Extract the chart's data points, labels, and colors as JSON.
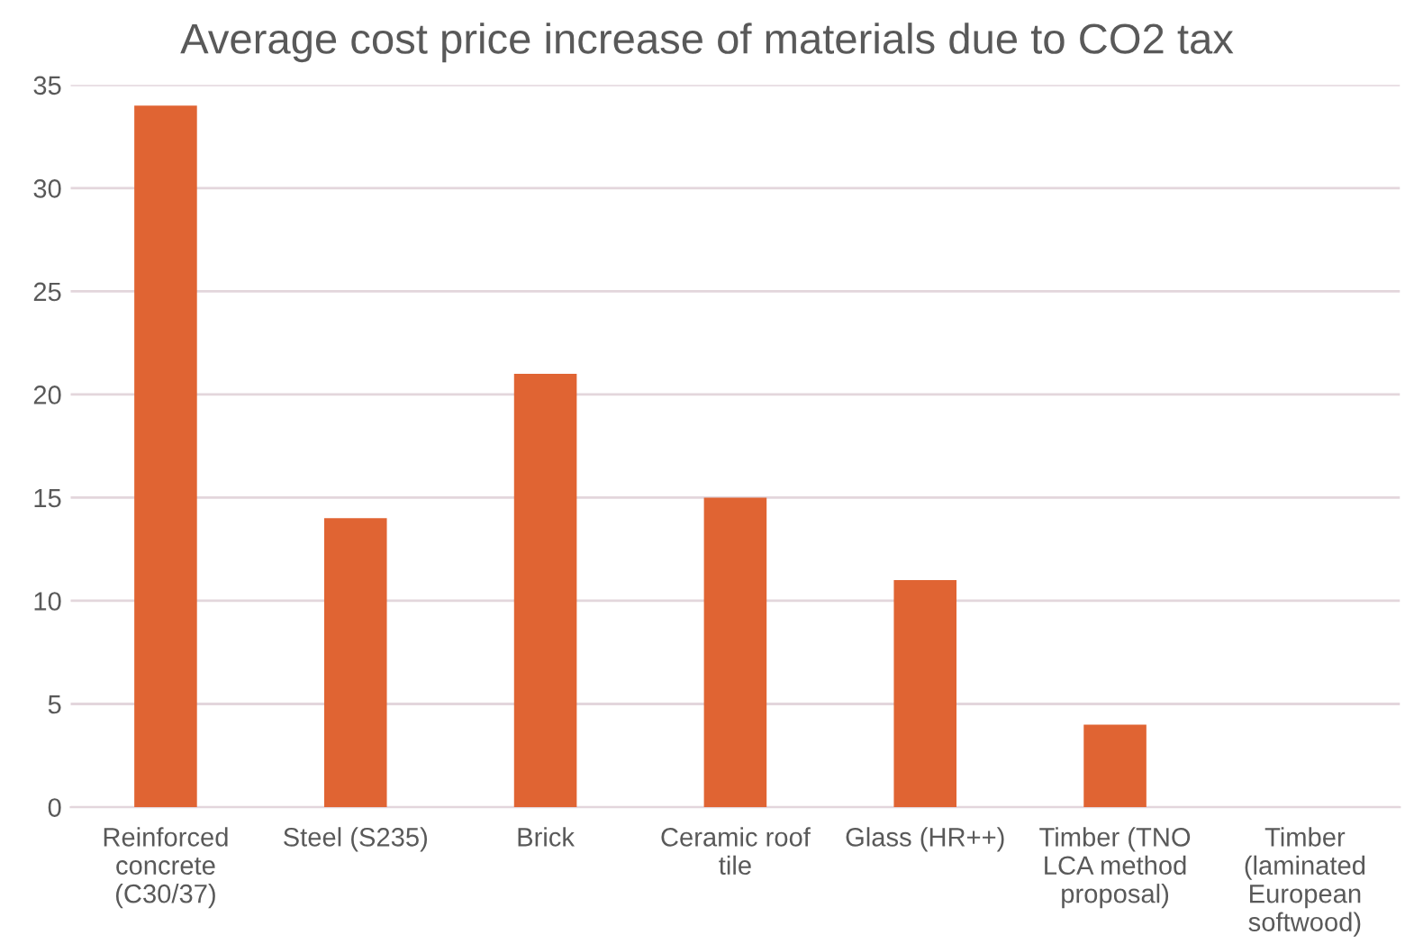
{
  "chart_data": {
    "type": "bar",
    "title": "Average cost price increase of materials due to CO2 tax",
    "categories": [
      "Reinforced\nconcrete\n(C30/37)",
      "Steel (S235)",
      "Brick",
      "Ceramic roof\ntile",
      "Glass (HR++)",
      "Timber (TNO\nLCA method\nproposal)",
      "Timber\n(laminated\nEuropean\nsoftwood)"
    ],
    "values": [
      34,
      14,
      21,
      15,
      11,
      4,
      0
    ],
    "color": "#e06433",
    "ylim": [
      0,
      35
    ],
    "yticks": [
      0,
      5,
      10,
      15,
      20,
      25,
      30,
      35
    ],
    "grid": "y"
  }
}
